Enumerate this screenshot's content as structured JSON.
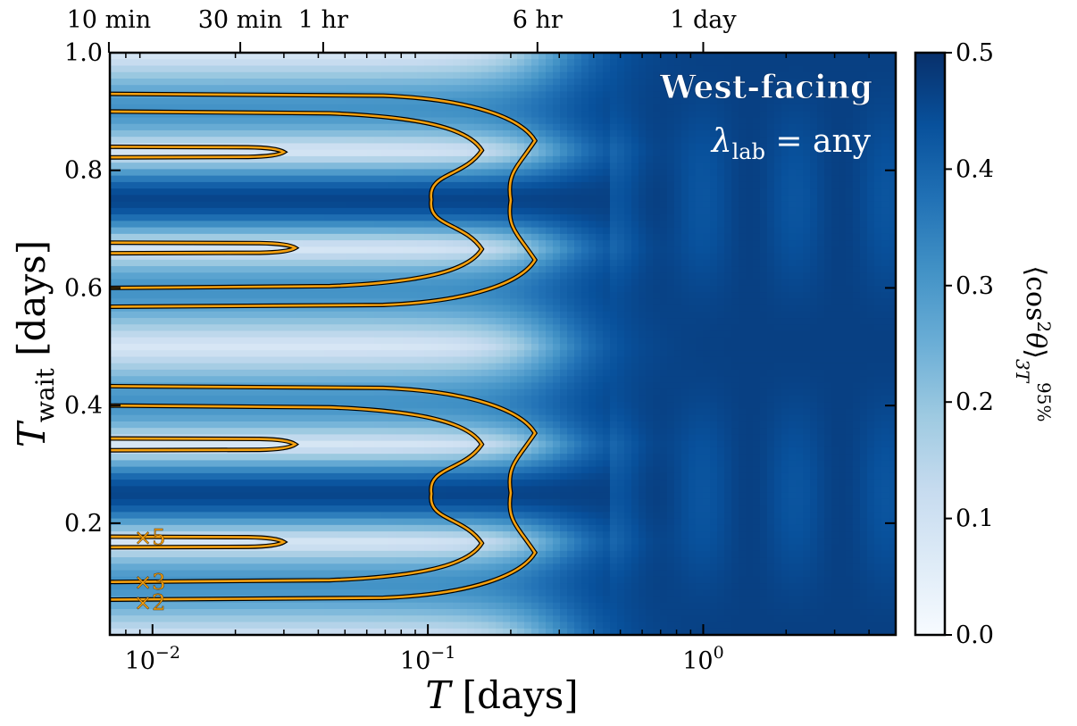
{
  "chart_data": {
    "type": "heatmap",
    "title": "",
    "xlabel": "T [days]",
    "ylabel": "T_wait [days]",
    "x_scale": "log",
    "xlim": [
      0.007,
      5.0
    ],
    "ylim": [
      0.01,
      1.0
    ],
    "x_ticks": [
      {
        "value": 0.01,
        "label": "10^−2"
      },
      {
        "value": 0.1,
        "label": "10^−1"
      },
      {
        "value": 1,
        "label": "10^0"
      }
    ],
    "x_ticks_top": [
      {
        "value": 0.006944,
        "label": "10 min"
      },
      {
        "value": 0.020833,
        "label": "30 min"
      },
      {
        "value": 0.041667,
        "label": "1 hr"
      },
      {
        "value": 0.25,
        "label": "6 hr"
      },
      {
        "value": 1,
        "label": "1 day"
      }
    ],
    "y_ticks": [
      "0.2",
      "0.4",
      "0.6",
      "0.8",
      "1.0"
    ],
    "colorbar": {
      "label": "⟨cos²θ⟩₃ₜ^95%",
      "range": [
        0.0,
        0.5
      ],
      "ticks": [
        "0.0",
        "0.1",
        "0.2",
        "0.3",
        "0.4",
        "0.5"
      ],
      "colormap": "Blues",
      "low_color": "#f7fbff",
      "high_color": "#08306b"
    },
    "annotations": {
      "title": "West-facing",
      "subtitle": "λ_lab = any"
    },
    "contour_color": "#f5a10f",
    "contours": [
      {
        "label": "×5",
        "lobes": [
          {
            "y_top": 0.84,
            "y_bottom": 0.822,
            "x_tip": 0.03
          },
          {
            "y_top": 0.677,
            "y_bottom": 0.659,
            "x_tip": 0.033
          },
          {
            "y_top": 0.344,
            "y_bottom": 0.324,
            "x_tip": 0.033
          },
          {
            "y_top": 0.177,
            "y_bottom": 0.159,
            "x_tip": 0.03
          }
        ]
      },
      {
        "label": "×3",
        "lobes": [
          {
            "y_top": 0.9,
            "y_bottom": 0.6,
            "x_notch": 0.103,
            "x_max": 0.157
          },
          {
            "y_top": 0.4,
            "y_bottom": 0.1,
            "x_notch": 0.103,
            "x_max": 0.157
          }
        ]
      },
      {
        "label": "×2",
        "lobes": [
          {
            "y_top": 0.93,
            "y_bottom": 0.568,
            "x_notch": 0.2,
            "x_max": 0.245
          },
          {
            "y_top": 0.433,
            "y_bottom": 0.07,
            "x_notch": 0.2,
            "x_max": 0.245
          }
        ]
      }
    ],
    "features": [
      {
        "description_value": "minimum near T_wait = 0.5 and T_wait ≈ 0.96 at short T"
      },
      {
        "description_value": "saturation above T ≈ 0.4 days"
      }
    ]
  }
}
